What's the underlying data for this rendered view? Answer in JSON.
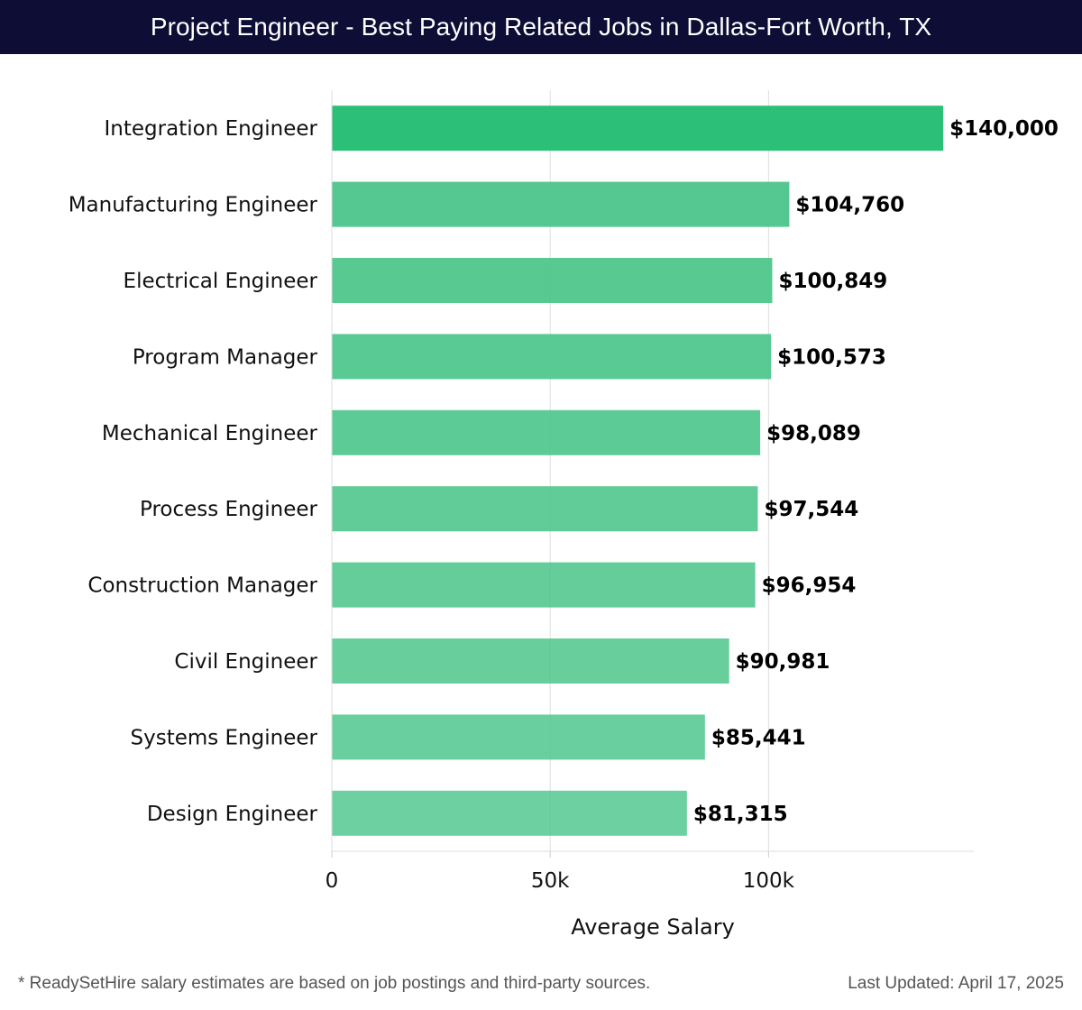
{
  "chart_data": {
    "type": "bar",
    "orientation": "horizontal",
    "title": "Project Engineer - Best Paying Related Jobs in Dallas-Fort Worth, TX",
    "categories": [
      "Integration Engineer",
      "Manufacturing Engineer",
      "Electrical Engineer",
      "Program Manager",
      "Mechanical Engineer",
      "Process Engineer",
      "Construction Manager",
      "Civil Engineer",
      "Systems Engineer",
      "Design Engineer"
    ],
    "values": [
      140000,
      104760,
      100849,
      100573,
      98089,
      97544,
      96954,
      90981,
      85441,
      81315
    ],
    "value_labels": [
      "$140,000",
      "$104,760",
      "$100,849",
      "$100,573",
      "$98,089",
      "$97,544",
      "$96,954",
      "$90,981",
      "$85,441",
      "$81,315"
    ],
    "xlabel": "Average Salary",
    "ylabel": "",
    "xlim": [
      0,
      147000
    ],
    "xticks": [
      0,
      50000,
      100000
    ],
    "xtick_labels": [
      "0",
      "50k",
      "100k"
    ],
    "grid": true,
    "colors": {
      "top_bar": "#2bbf77",
      "bars": "#4dc68b",
      "title_bg": "#0d0d35"
    }
  },
  "footer": {
    "note": "* ReadySetHire salary estimates are based on job postings and third-party sources.",
    "updated": "Last Updated: April 17, 2025"
  }
}
